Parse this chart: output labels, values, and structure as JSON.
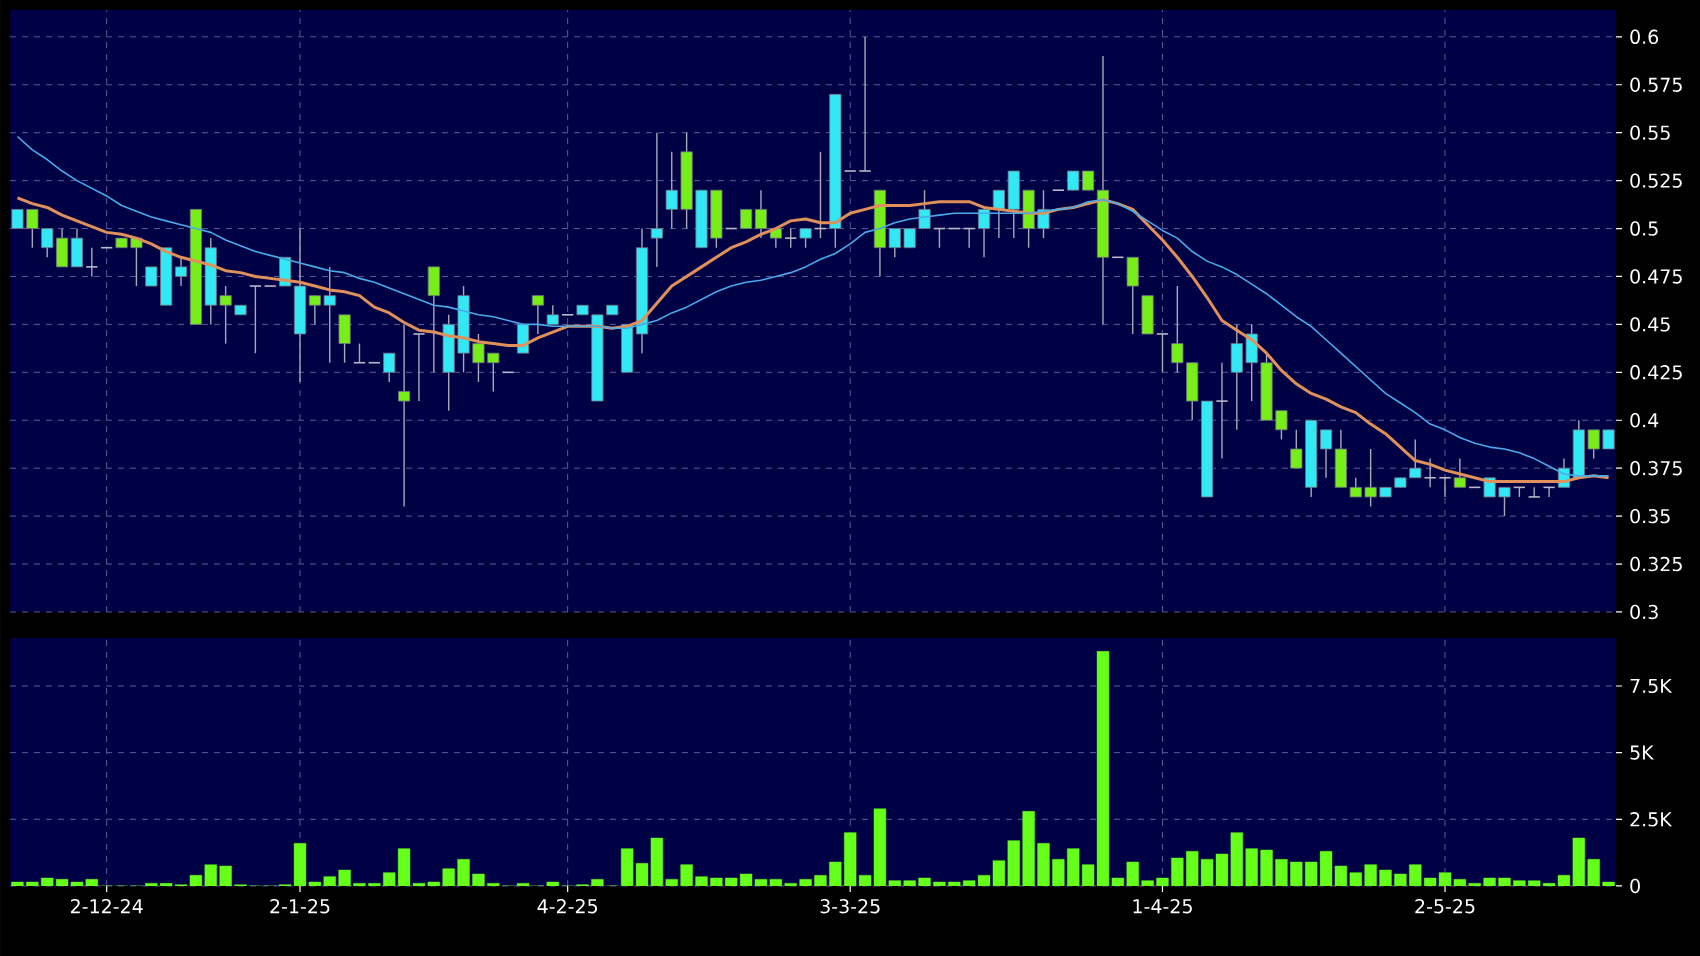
{
  "chart_data": [
    {
      "type": "candlestick",
      "ohlc": [
        [
          0.5,
          0.51,
          0.5,
          0.51
        ],
        [
          0.51,
          0.51,
          0.49,
          0.5
        ],
        [
          0.49,
          0.5,
          0.485,
          0.5
        ],
        [
          0.495,
          0.5,
          0.48,
          0.48
        ],
        [
          0.48,
          0.5,
          0.48,
          0.495
        ],
        [
          0.48,
          0.49,
          0.475,
          0.48
        ],
        [
          0.49,
          0.49,
          0.49,
          0.49
        ],
        [
          0.495,
          0.495,
          0.49,
          0.49
        ],
        [
          0.495,
          0.495,
          0.47,
          0.49
        ],
        [
          0.47,
          0.48,
          0.47,
          0.48
        ],
        [
          0.46,
          0.49,
          0.46,
          0.49
        ],
        [
          0.475,
          0.485,
          0.47,
          0.48
        ],
        [
          0.51,
          0.51,
          0.45,
          0.45
        ],
        [
          0.46,
          0.495,
          0.45,
          0.49
        ],
        [
          0.465,
          0.47,
          0.44,
          0.46
        ],
        [
          0.455,
          0.46,
          0.455,
          0.46
        ],
        [
          0.47,
          0.47,
          0.435,
          0.47
        ],
        [
          0.47,
          0.47,
          0.47,
          0.47
        ],
        [
          0.47,
          0.485,
          0.47,
          0.485
        ],
        [
          0.445,
          0.5,
          0.42,
          0.47
        ],
        [
          0.465,
          0.465,
          0.45,
          0.46
        ],
        [
          0.46,
          0.48,
          0.43,
          0.465
        ],
        [
          0.455,
          0.455,
          0.43,
          0.44
        ],
        [
          0.43,
          0.44,
          0.43,
          0.43
        ],
        [
          0.43,
          0.43,
          0.43,
          0.43
        ],
        [
          0.425,
          0.435,
          0.42,
          0.435
        ],
        [
          0.415,
          0.45,
          0.355,
          0.41
        ],
        [
          0.445,
          0.445,
          0.41,
          0.445
        ],
        [
          0.48,
          0.48,
          0.425,
          0.465
        ],
        [
          0.425,
          0.455,
          0.405,
          0.45
        ],
        [
          0.435,
          0.47,
          0.425,
          0.465
        ],
        [
          0.44,
          0.445,
          0.42,
          0.43
        ],
        [
          0.435,
          0.435,
          0.415,
          0.43
        ],
        [
          0.425,
          0.425,
          0.425,
          0.425
        ],
        [
          0.435,
          0.45,
          0.435,
          0.45
        ],
        [
          0.465,
          0.465,
          0.445,
          0.46
        ],
        [
          0.45,
          0.46,
          0.45,
          0.455
        ],
        [
          0.455,
          0.455,
          0.455,
          0.455
        ],
        [
          0.455,
          0.46,
          0.455,
          0.46
        ],
        [
          0.41,
          0.455,
          0.41,
          0.455
        ],
        [
          0.455,
          0.46,
          0.455,
          0.46
        ],
        [
          0.425,
          0.45,
          0.425,
          0.45
        ],
        [
          0.445,
          0.5,
          0.435,
          0.49
        ],
        [
          0.495,
          0.55,
          0.48,
          0.5
        ],
        [
          0.51,
          0.54,
          0.5,
          0.52
        ],
        [
          0.54,
          0.55,
          0.5,
          0.51
        ],
        [
          0.49,
          0.52,
          0.49,
          0.52
        ],
        [
          0.52,
          0.52,
          0.49,
          0.495
        ],
        [
          0.5,
          0.5,
          0.5,
          0.5
        ],
        [
          0.51,
          0.51,
          0.5,
          0.5
        ],
        [
          0.51,
          0.52,
          0.495,
          0.5
        ],
        [
          0.5,
          0.5,
          0.49,
          0.495
        ],
        [
          0.495,
          0.5,
          0.49,
          0.495
        ],
        [
          0.495,
          0.5,
          0.49,
          0.5
        ],
        [
          0.5,
          0.54,
          0.495,
          0.5
        ],
        [
          0.5,
          0.57,
          0.49,
          0.57
        ],
        [
          0.53,
          0.53,
          0.53,
          0.53
        ],
        [
          0.53,
          0.6,
          0.53,
          0.53
        ],
        [
          0.52,
          0.52,
          0.475,
          0.49
        ],
        [
          0.49,
          0.5,
          0.485,
          0.5
        ],
        [
          0.49,
          0.5,
          0.49,
          0.5
        ],
        [
          0.5,
          0.52,
          0.5,
          0.51
        ],
        [
          0.5,
          0.5,
          0.49,
          0.5
        ],
        [
          0.5,
          0.5,
          0.5,
          0.5
        ],
        [
          0.5,
          0.5,
          0.49,
          0.5
        ],
        [
          0.5,
          0.51,
          0.485,
          0.51
        ],
        [
          0.51,
          0.52,
          0.495,
          0.52
        ],
        [
          0.51,
          0.53,
          0.495,
          0.53
        ],
        [
          0.52,
          0.52,
          0.49,
          0.5
        ],
        [
          0.5,
          0.52,
          0.495,
          0.51
        ],
        [
          0.52,
          0.52,
          0.52,
          0.52
        ],
        [
          0.52,
          0.53,
          0.52,
          0.53
        ],
        [
          0.53,
          0.53,
          0.52,
          0.52
        ],
        [
          0.52,
          0.59,
          0.45,
          0.485
        ],
        [
          0.485,
          0.485,
          0.485,
          0.485
        ],
        [
          0.485,
          0.485,
          0.445,
          0.47
        ],
        [
          0.465,
          0.465,
          0.445,
          0.445
        ],
        [
          0.445,
          0.445,
          0.425,
          0.445
        ],
        [
          0.44,
          0.47,
          0.425,
          0.43
        ],
        [
          0.43,
          0.43,
          0.4,
          0.41
        ],
        [
          0.36,
          0.41,
          0.36,
          0.41
        ],
        [
          0.41,
          0.43,
          0.38,
          0.41
        ],
        [
          0.425,
          0.45,
          0.395,
          0.44
        ],
        [
          0.43,
          0.45,
          0.41,
          0.445
        ],
        [
          0.43,
          0.435,
          0.4,
          0.4
        ],
        [
          0.405,
          0.405,
          0.39,
          0.395
        ],
        [
          0.385,
          0.395,
          0.375,
          0.375
        ],
        [
          0.365,
          0.4,
          0.36,
          0.4
        ],
        [
          0.385,
          0.395,
          0.37,
          0.395
        ],
        [
          0.385,
          0.395,
          0.365,
          0.365
        ],
        [
          0.365,
          0.37,
          0.36,
          0.36
        ],
        [
          0.365,
          0.385,
          0.355,
          0.36
        ],
        [
          0.36,
          0.365,
          0.36,
          0.365
        ],
        [
          0.365,
          0.37,
          0.365,
          0.37
        ],
        [
          0.37,
          0.39,
          0.37,
          0.375
        ],
        [
          0.37,
          0.38,
          0.365,
          0.37
        ],
        [
          0.37,
          0.37,
          0.36,
          0.37
        ],
        [
          0.37,
          0.38,
          0.365,
          0.365
        ],
        [
          0.365,
          0.365,
          0.365,
          0.365
        ],
        [
          0.36,
          0.37,
          0.36,
          0.37
        ],
        [
          0.36,
          0.365,
          0.35,
          0.365
        ],
        [
          0.365,
          0.365,
          0.36,
          0.365
        ],
        [
          0.36,
          0.365,
          0.36,
          0.36
        ],
        [
          0.365,
          0.365,
          0.36,
          0.365
        ],
        [
          0.365,
          0.38,
          0.365,
          0.375
        ],
        [
          0.37,
          0.4,
          0.37,
          0.395
        ],
        [
          0.395,
          0.395,
          0.38,
          0.385
        ],
        [
          0.385,
          0.395,
          0.385,
          0.395
        ]
      ],
      "colors": [
        "#33e8f5",
        "#77ee1a",
        "#33e8f5",
        "#77ee1a",
        "#33e8f5",
        "#b8b8c8",
        "#b8b8c8",
        "#77ee1a",
        "#77ee1a",
        "#33e8f5",
        "#33e8f5",
        "#33e8f5",
        "#77ee1a",
        "#33e8f5",
        "#77ee1a",
        "#33e8f5",
        "#b8b8c8",
        "#b8b8c8",
        "#33e8f5",
        "#33e8f5",
        "#77ee1a",
        "#33e8f5",
        "#77ee1a",
        "#b8b8c8",
        "#b8b8c8",
        "#33e8f5",
        "#77ee1a",
        "#b8b8c8",
        "#77ee1a",
        "#33e8f5",
        "#33e8f5",
        "#77ee1a",
        "#77ee1a",
        "#b8b8c8",
        "#33e8f5",
        "#77ee1a",
        "#33e8f5",
        "#b8b8c8",
        "#33e8f5",
        "#33e8f5",
        "#33e8f5",
        "#33e8f5",
        "#33e8f5",
        "#33e8f5",
        "#33e8f5",
        "#77ee1a",
        "#33e8f5",
        "#77ee1a",
        "#b8b8c8",
        "#77ee1a",
        "#77ee1a",
        "#77ee1a",
        "#b8b8c8",
        "#33e8f5",
        "#b8b8c8",
        "#33e8f5",
        "#b8b8c8",
        "#b8b8c8",
        "#77ee1a",
        "#33e8f5",
        "#33e8f5",
        "#33e8f5",
        "#b8b8c8",
        "#b8b8c8",
        "#b8b8c8",
        "#33e8f5",
        "#33e8f5",
        "#33e8f5",
        "#77ee1a",
        "#33e8f5",
        "#b8b8c8",
        "#33e8f5",
        "#77ee1a",
        "#77ee1a",
        "#b8b8c8",
        "#77ee1a",
        "#77ee1a",
        "#b8b8c8",
        "#77ee1a",
        "#77ee1a",
        "#33e8f5",
        "#b8b8c8",
        "#33e8f5",
        "#33e8f5",
        "#77ee1a",
        "#77ee1a",
        "#77ee1a",
        "#33e8f5",
        "#33e8f5",
        "#77ee1a",
        "#77ee1a",
        "#77ee1a",
        "#33e8f5",
        "#33e8f5",
        "#33e8f5",
        "#b8b8c8",
        "#b8b8c8",
        "#77ee1a",
        "#b8b8c8",
        "#33e8f5",
        "#33e8f5",
        "#b8b8c8",
        "#b8b8c8",
        "#b8b8c8",
        "#33e8f5",
        "#33e8f5",
        "#77ee1a",
        "#33e8f5"
      ],
      "series": [
        {
          "type": "line",
          "color": "#e0905a",
          "values": [
            0.516,
            0.513,
            0.511,
            0.507,
            0.504,
            0.501,
            0.498,
            0.497,
            0.495,
            0.492,
            0.488,
            0.485,
            0.483,
            0.481,
            0.478,
            0.477,
            0.475,
            0.474,
            0.473,
            0.472,
            0.47,
            0.468,
            0.467,
            0.465,
            0.459,
            0.456,
            0.451,
            0.447,
            0.446,
            0.444,
            0.443,
            0.441,
            0.44,
            0.439,
            0.439,
            0.443,
            0.446,
            0.449,
            0.449,
            0.449,
            0.448,
            0.449,
            0.452,
            0.461,
            0.47,
            0.475,
            0.48,
            0.485,
            0.49,
            0.493,
            0.497,
            0.5,
            0.504,
            0.505,
            0.503,
            0.503,
            0.508,
            0.51,
            0.512,
            0.512,
            0.512,
            0.513,
            0.514,
            0.514,
            0.514,
            0.511,
            0.51,
            0.509,
            0.508,
            0.508,
            0.51,
            0.511,
            0.513,
            0.515,
            0.513,
            0.51,
            0.502,
            0.494,
            0.485,
            0.475,
            0.464,
            0.452,
            0.447,
            0.442,
            0.435,
            0.426,
            0.419,
            0.414,
            0.411,
            0.407,
            0.404,
            0.398,
            0.393,
            0.386,
            0.379,
            0.377,
            0.374,
            0.372,
            0.37,
            0.368,
            0.368,
            0.368,
            0.368,
            0.368,
            0.368,
            0.37,
            0.371,
            0.37
          ]
        },
        {
          "type": "line",
          "color": "#4aaae8",
          "values": [
            0.548,
            0.541,
            0.536,
            0.53,
            0.525,
            0.521,
            0.517,
            0.512,
            0.509,
            0.506,
            0.504,
            0.502,
            0.5,
            0.498,
            0.494,
            0.491,
            0.488,
            0.486,
            0.484,
            0.482,
            0.48,
            0.478,
            0.477,
            0.474,
            0.472,
            0.469,
            0.466,
            0.463,
            0.46,
            0.459,
            0.457,
            0.455,
            0.454,
            0.452,
            0.45,
            0.45,
            0.449,
            0.449,
            0.449,
            0.449,
            0.448,
            0.448,
            0.45,
            0.452,
            0.456,
            0.459,
            0.463,
            0.467,
            0.47,
            0.472,
            0.473,
            0.475,
            0.477,
            0.48,
            0.484,
            0.487,
            0.492,
            0.498,
            0.5,
            0.503,
            0.505,
            0.506,
            0.507,
            0.508,
            0.508,
            0.508,
            0.508,
            0.508,
            0.508,
            0.509,
            0.51,
            0.511,
            0.514,
            0.515,
            0.513,
            0.509,
            0.504,
            0.499,
            0.495,
            0.488,
            0.483,
            0.48,
            0.476,
            0.471,
            0.466,
            0.46,
            0.454,
            0.449,
            0.442,
            0.435,
            0.428,
            0.421,
            0.414,
            0.409,
            0.404,
            0.398,
            0.395,
            0.391,
            0.388,
            0.386,
            0.385,
            0.383,
            0.38,
            0.376,
            0.372,
            0.371,
            0.371,
            0.371
          ]
        }
      ],
      "ylim": [
        0.3,
        0.614
      ],
      "yticks": [
        0.3,
        0.325,
        0.35,
        0.375,
        0.4,
        0.425,
        0.45,
        0.475,
        0.5,
        0.525,
        0.55,
        0.575,
        0.6
      ],
      "grid": true,
      "tick_labels": "y"
    },
    {
      "type": "bar",
      "categories": [
        null,
        null,
        null,
        null,
        null,
        null,
        "2-12-24",
        null,
        null,
        null,
        null,
        null,
        null,
        null,
        null,
        null,
        null,
        null,
        null,
        "2-1-25",
        null,
        null,
        null,
        null,
        null,
        null,
        null,
        null,
        null,
        null,
        null,
        null,
        null,
        null,
        null,
        null,
        null,
        "4-2-25",
        null,
        null,
        null,
        null,
        null,
        null,
        null,
        null,
        null,
        null,
        null,
        null,
        null,
        null,
        null,
        null,
        null,
        null,
        "3-3-25",
        null,
        null,
        null,
        null,
        null,
        null,
        null,
        null,
        null,
        null,
        null,
        null,
        null,
        null,
        null,
        null,
        null,
        null,
        null,
        null,
        "1-4-25",
        null,
        null,
        null,
        null,
        null,
        null,
        null,
        null,
        null,
        null,
        null,
        null,
        null,
        null,
        null,
        null,
        null,
        null,
        "2-5-25",
        null,
        null,
        null,
        null,
        null,
        null,
        null,
        null,
        null,
        null,
        null
      ],
      "values": [
        150,
        150,
        300,
        250,
        150,
        250,
        0,
        0,
        0,
        100,
        100,
        50,
        400,
        800,
        750,
        50,
        0,
        0,
        50,
        1600,
        150,
        350,
        600,
        100,
        100,
        500,
        1400,
        100,
        150,
        650,
        1000,
        450,
        100,
        0,
        100,
        0,
        150,
        0,
        50,
        250,
        0,
        1400,
        850,
        1800,
        250,
        800,
        350,
        300,
        300,
        450,
        250,
        250,
        100,
        250,
        400,
        900,
        2000,
        400,
        2900,
        200,
        200,
        300,
        150,
        150,
        200,
        400,
        950,
        1700,
        2800,
        1600,
        1000,
        1400,
        800,
        8800,
        300,
        900,
        200,
        300,
        1050,
        1300,
        1000,
        1200,
        2000,
        1400,
        1350,
        1000,
        900,
        900,
        1300,
        750,
        500,
        800,
        600,
        450,
        800,
        300,
        500,
        250,
        100,
        300,
        300,
        200,
        200,
        100,
        400,
        1800,
        1000,
        150
      ],
      "color": "#66ff1a",
      "ylim": [
        0,
        9300
      ],
      "yticks": [
        0,
        {
          "value": 2500,
          "label": "2.5K"
        },
        {
          "value": 5000,
          "label": "5K"
        },
        {
          "value": 7500,
          "label": "7.5K"
        }
      ],
      "grid": true
    }
  ]
}
